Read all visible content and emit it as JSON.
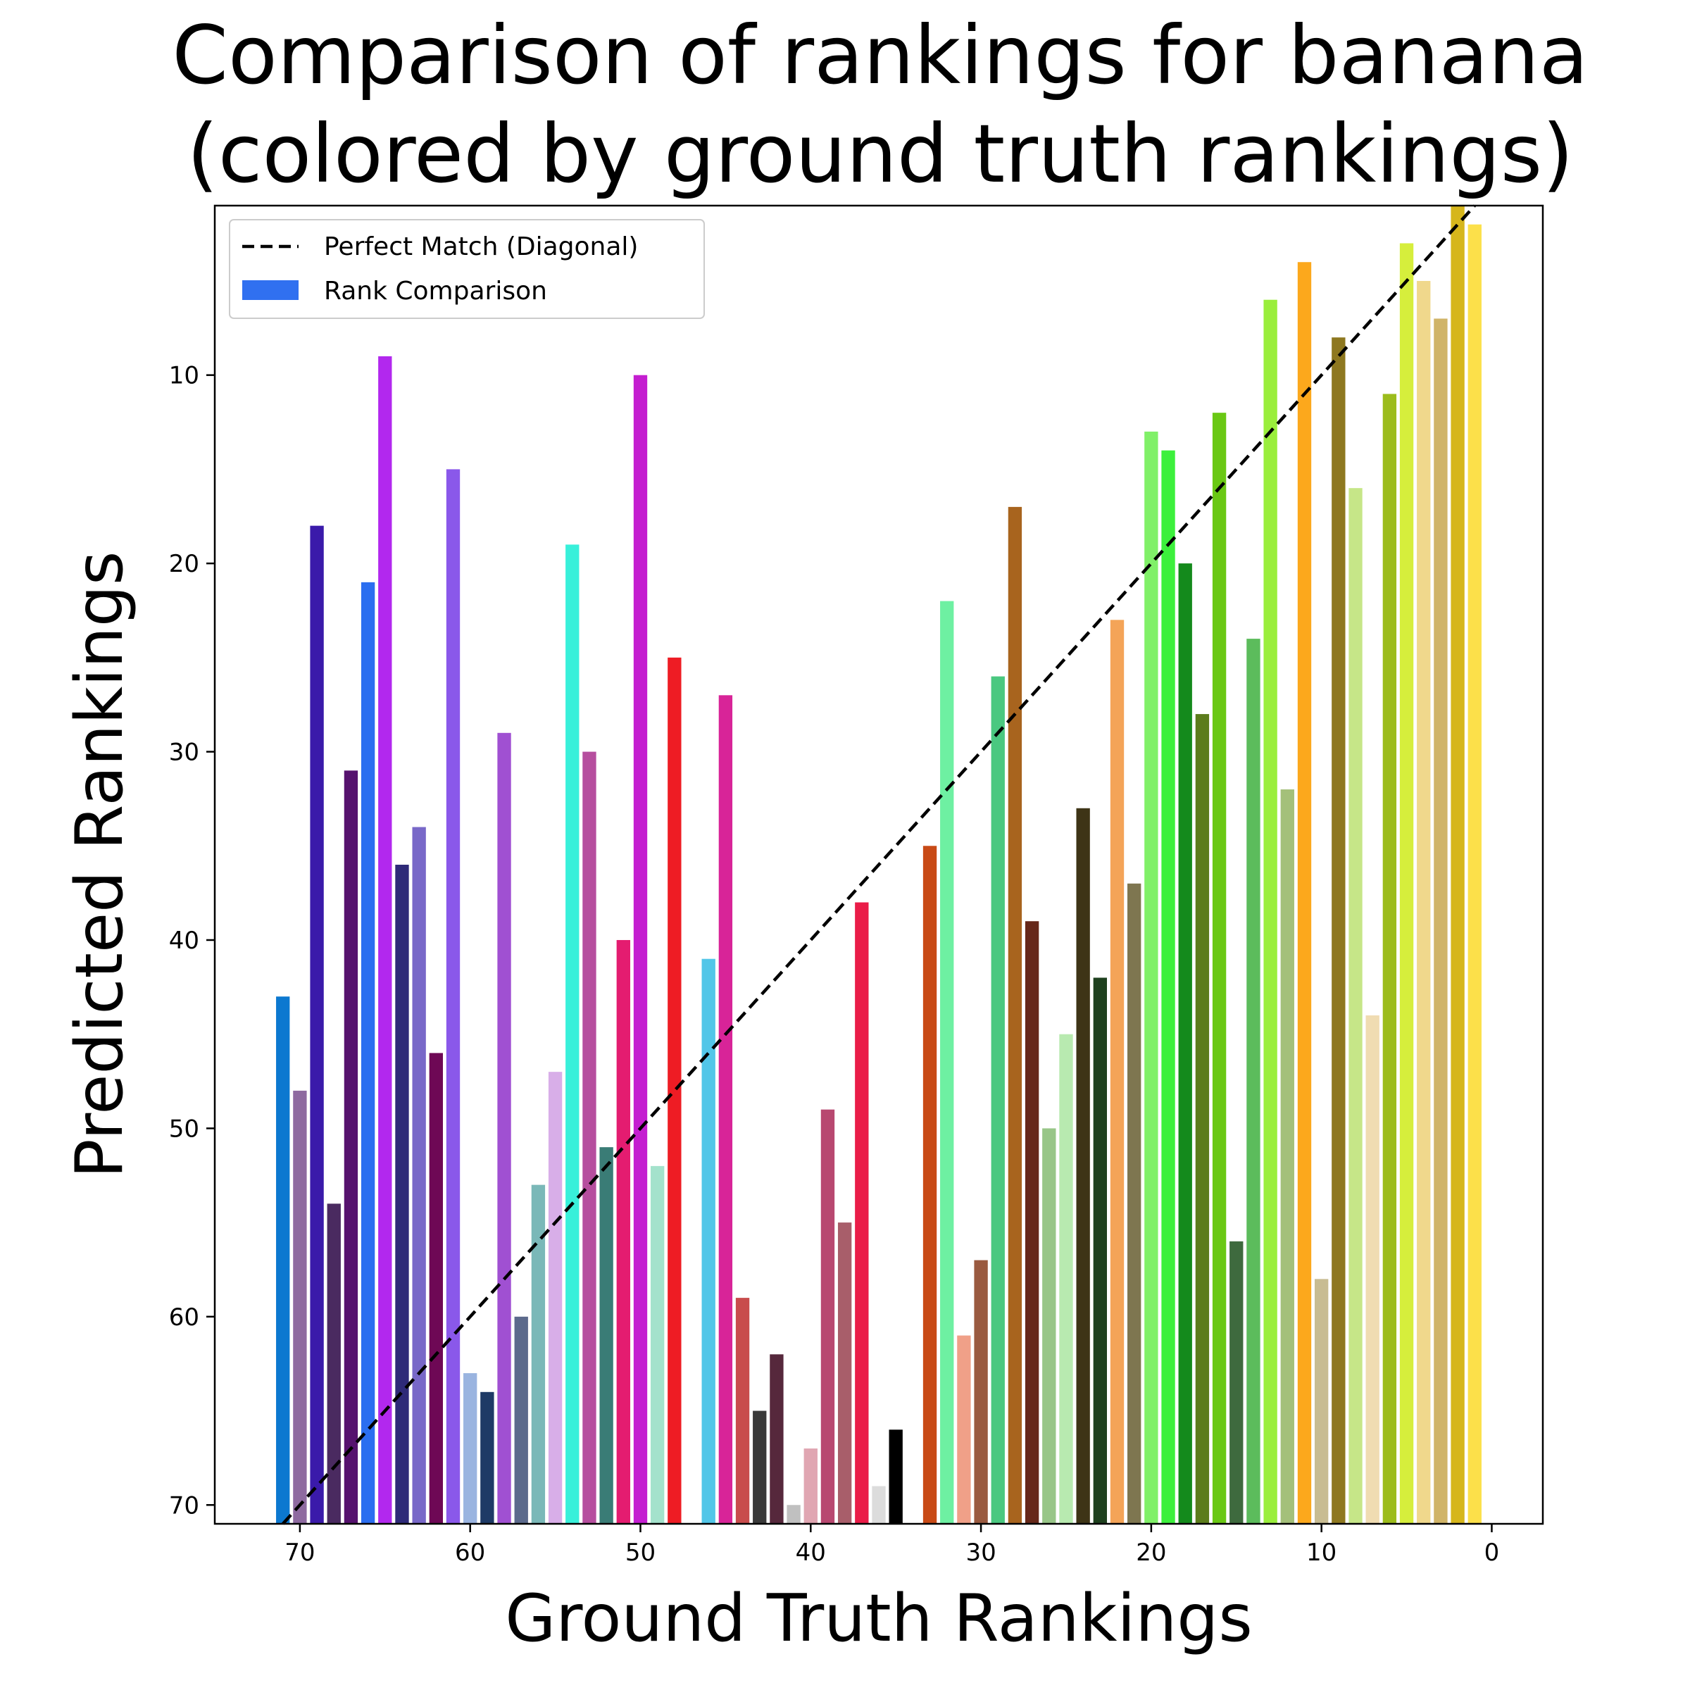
{
  "chart_data": {
    "type": "bar",
    "title": [
      "Comparison of rankings for banana",
      "(colored by ground truth rankings)"
    ],
    "xlabel": "Ground Truth Rankings",
    "ylabel": "Predicted Rankings",
    "xlim": [
      75,
      -3
    ],
    "ylim": [
      71,
      1
    ],
    "x_ticks": [
      70,
      60,
      50,
      40,
      30,
      20,
      10,
      0
    ],
    "y_ticks": [
      10,
      20,
      30,
      40,
      50,
      60,
      70
    ],
    "grid": false,
    "diagonal": {
      "name": "Perfect Match (Diagonal)",
      "style": "dashed",
      "color": "#000000"
    },
    "series": [
      {
        "name": "Rank Comparison",
        "legend_color": "#3070f0"
      }
    ],
    "legend": {
      "placement": "top-left",
      "entries": [
        "Perfect Match (Diagonal)",
        "Rank Comparison"
      ]
    },
    "bars": [
      {
        "x": 71,
        "y": 43,
        "color": "#0c78d0"
      },
      {
        "x": 70,
        "y": 48,
        "color": "#8e6aa0"
      },
      {
        "x": 69,
        "y": 18,
        "color": "#3a1aaa"
      },
      {
        "x": 68,
        "y": 54,
        "color": "#4a2a60"
      },
      {
        "x": 67,
        "y": 31,
        "color": "#56126e"
      },
      {
        "x": 66,
        "y": 21,
        "color": "#2b6ef0"
      },
      {
        "x": 65,
        "y": 9,
        "color": "#b228ee"
      },
      {
        "x": 64,
        "y": 36,
        "color": "#2e2a78"
      },
      {
        "x": 63,
        "y": 34,
        "color": "#7868c8"
      },
      {
        "x": 62,
        "y": 46,
        "color": "#6e0855"
      },
      {
        "x": 61,
        "y": 15,
        "color": "#8a58ea"
      },
      {
        "x": 60,
        "y": 63,
        "color": "#9ab4e0"
      },
      {
        "x": 59,
        "y": 64,
        "color": "#1e3a66"
      },
      {
        "x": 58,
        "y": 29,
        "color": "#a050d2"
      },
      {
        "x": 57,
        "y": 60,
        "color": "#5c6a8c"
      },
      {
        "x": 56,
        "y": 53,
        "color": "#7ab8b8"
      },
      {
        "x": 55,
        "y": 47,
        "color": "#d8aee8"
      },
      {
        "x": 54,
        "y": 19,
        "color": "#38f0da"
      },
      {
        "x": 53,
        "y": 30,
        "color": "#b64e9e"
      },
      {
        "x": 52,
        "y": 51,
        "color": "#3a7c76"
      },
      {
        "x": 51,
        "y": 40,
        "color": "#e41c70"
      },
      {
        "x": 50,
        "y": 10,
        "color": "#c41ed0"
      },
      {
        "x": 49,
        "y": 52,
        "color": "#a4e2cc"
      },
      {
        "x": 48,
        "y": 25,
        "color": "#ee1c24"
      },
      {
        "x": 46,
        "y": 41,
        "color": "#52c6e8"
      },
      {
        "x": 45,
        "y": 27,
        "color": "#d82498"
      },
      {
        "x": 44,
        "y": 59,
        "color": "#c84c4c"
      },
      {
        "x": 43,
        "y": 65,
        "color": "#3a3a3a"
      },
      {
        "x": 42,
        "y": 62,
        "color": "#56283c"
      },
      {
        "x": 41,
        "y": 70,
        "color": "#c0c0c0"
      },
      {
        "x": 40,
        "y": 67,
        "color": "#e0a6b2"
      },
      {
        "x": 39,
        "y": 49,
        "color": "#b84870"
      },
      {
        "x": 38,
        "y": 55,
        "color": "#a85e6a"
      },
      {
        "x": 37,
        "y": 38,
        "color": "#ea1c48"
      },
      {
        "x": 36,
        "y": 69,
        "color": "#dcdcdc"
      },
      {
        "x": 35,
        "y": 66,
        "color": "#000000"
      },
      {
        "x": 33,
        "y": 35,
        "color": "#c84a16"
      },
      {
        "x": 32,
        "y": 22,
        "color": "#6ef0a2"
      },
      {
        "x": 31,
        "y": 61,
        "color": "#f0a088"
      },
      {
        "x": 30,
        "y": 57,
        "color": "#9a5a40"
      },
      {
        "x": 29,
        "y": 26,
        "color": "#4ac880"
      },
      {
        "x": 28,
        "y": 17,
        "color": "#a8641e"
      },
      {
        "x": 27,
        "y": 39,
        "color": "#66281a"
      },
      {
        "x": 26,
        "y": 50,
        "color": "#98c688"
      },
      {
        "x": 25,
        "y": 45,
        "color": "#b8eab0"
      },
      {
        "x": 24,
        "y": 33,
        "color": "#3e3416"
      },
      {
        "x": 23,
        "y": 42,
        "color": "#1e401e"
      },
      {
        "x": 22,
        "y": 23,
        "color": "#f4a458"
      },
      {
        "x": 21,
        "y": 37,
        "color": "#7e7650"
      },
      {
        "x": 20,
        "y": 13,
        "color": "#80f068"
      },
      {
        "x": 19,
        "y": 14,
        "color": "#3cf03c"
      },
      {
        "x": 18,
        "y": 20,
        "color": "#148a1c"
      },
      {
        "x": 17,
        "y": 28,
        "color": "#5c7c1c"
      },
      {
        "x": 16,
        "y": 12,
        "color": "#6ac814"
      },
      {
        "x": 15,
        "y": 56,
        "color": "#3e6a3e"
      },
      {
        "x": 14,
        "y": 24,
        "color": "#5cbc5c"
      },
      {
        "x": 13,
        "y": 6,
        "color": "#9aee3c"
      },
      {
        "x": 12,
        "y": 32,
        "color": "#a4c07a"
      },
      {
        "x": 11,
        "y": 4,
        "color": "#fca81c"
      },
      {
        "x": 10,
        "y": 58,
        "color": "#c8bc92"
      },
      {
        "x": 9,
        "y": 8,
        "color": "#8e7820"
      },
      {
        "x": 8,
        "y": 16,
        "color": "#c6e688"
      },
      {
        "x": 7,
        "y": 44,
        "color": "#f0dcb2"
      },
      {
        "x": 6,
        "y": 11,
        "color": "#9cbc1c"
      },
      {
        "x": 5,
        "y": 3,
        "color": "#d6ee3c"
      },
      {
        "x": 4,
        "y": 5,
        "color": "#f0d88c"
      },
      {
        "x": 3,
        "y": 7,
        "color": "#d0b468"
      },
      {
        "x": 2,
        "y": 1,
        "color": "#d6b61c"
      },
      {
        "x": 1,
        "y": 2,
        "color": "#fce04a"
      }
    ]
  }
}
